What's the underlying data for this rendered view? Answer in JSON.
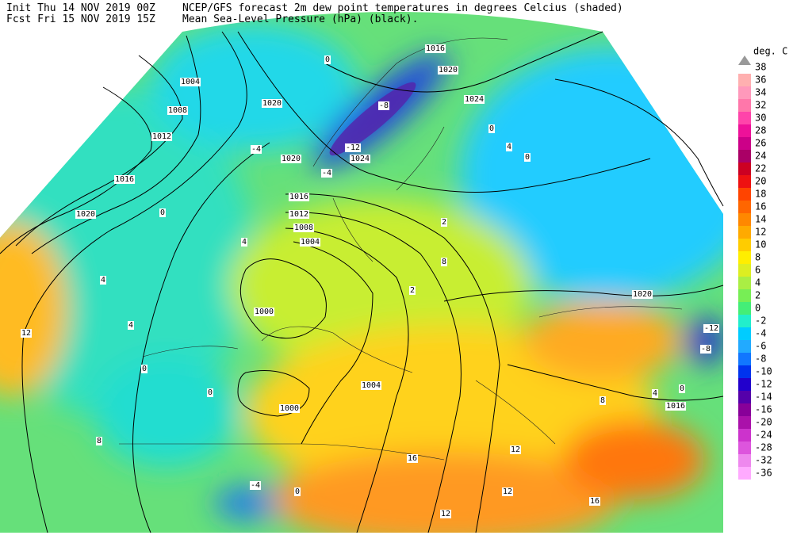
{
  "header": {
    "init": "Init  Thu 14 NOV 2019 00Z",
    "fcst": "Fcst Fri 15 NOV 2019 15Z",
    "title": "NCEP/GFS forecast 2m dew point temperatures in degrees Celcius (shaded)",
    "subtitle": "Mean Sea-Level Pressure (hPa) (black)."
  },
  "colorbar": {
    "title": "deg. C",
    "labels": [
      38,
      36,
      34,
      32,
      30,
      28,
      26,
      24,
      22,
      20,
      18,
      16,
      14,
      12,
      10,
      8,
      6,
      4,
      2,
      0,
      -2,
      -4,
      -6,
      -8,
      -10,
      -12,
      -14,
      -16,
      -20,
      -24,
      -28,
      -32,
      -36
    ],
    "colors": [
      "#ffb0b0",
      "#ff99bb",
      "#ff77aa",
      "#ff44aa",
      "#ee1199",
      "#cc0088",
      "#aa0066",
      "#cc0022",
      "#ee1111",
      "#ff4400",
      "#ff6600",
      "#ff8800",
      "#ffaa00",
      "#ffcc00",
      "#ffee00",
      "#ddee22",
      "#aaee44",
      "#77ee55",
      "#44ee77",
      "#22eecc",
      "#00ccff",
      "#22aaff",
      "#1177ff",
      "#0033ee",
      "#2200cc",
      "#5500aa",
      "#880099",
      "#aa11aa",
      "#cc33cc",
      "#dd55dd",
      "#ee88ee",
      "#ffaaff"
    ]
  },
  "map": {
    "isobar_labels": [
      "1004",
      "1008",
      "1012",
      "1016",
      "1020",
      "1020",
      "1020",
      "1016",
      "1012",
      "1008",
      "1004",
      "1000",
      "1000",
      "1004",
      "1016",
      "1020",
      "1024",
      "1024",
      "1020",
      "1016"
    ],
    "dewpoint_labels": [
      "-4",
      "0",
      "4",
      "12",
      "8",
      "0",
      "0",
      "4",
      "-4",
      "0",
      "16",
      "12",
      "12",
      "16",
      "12",
      "-8",
      "-12",
      "-4",
      "0",
      "4",
      "0",
      "8",
      "2",
      "-12",
      "-8",
      "0",
      "4",
      "8",
      "2",
      "4",
      "0"
    ]
  }
}
